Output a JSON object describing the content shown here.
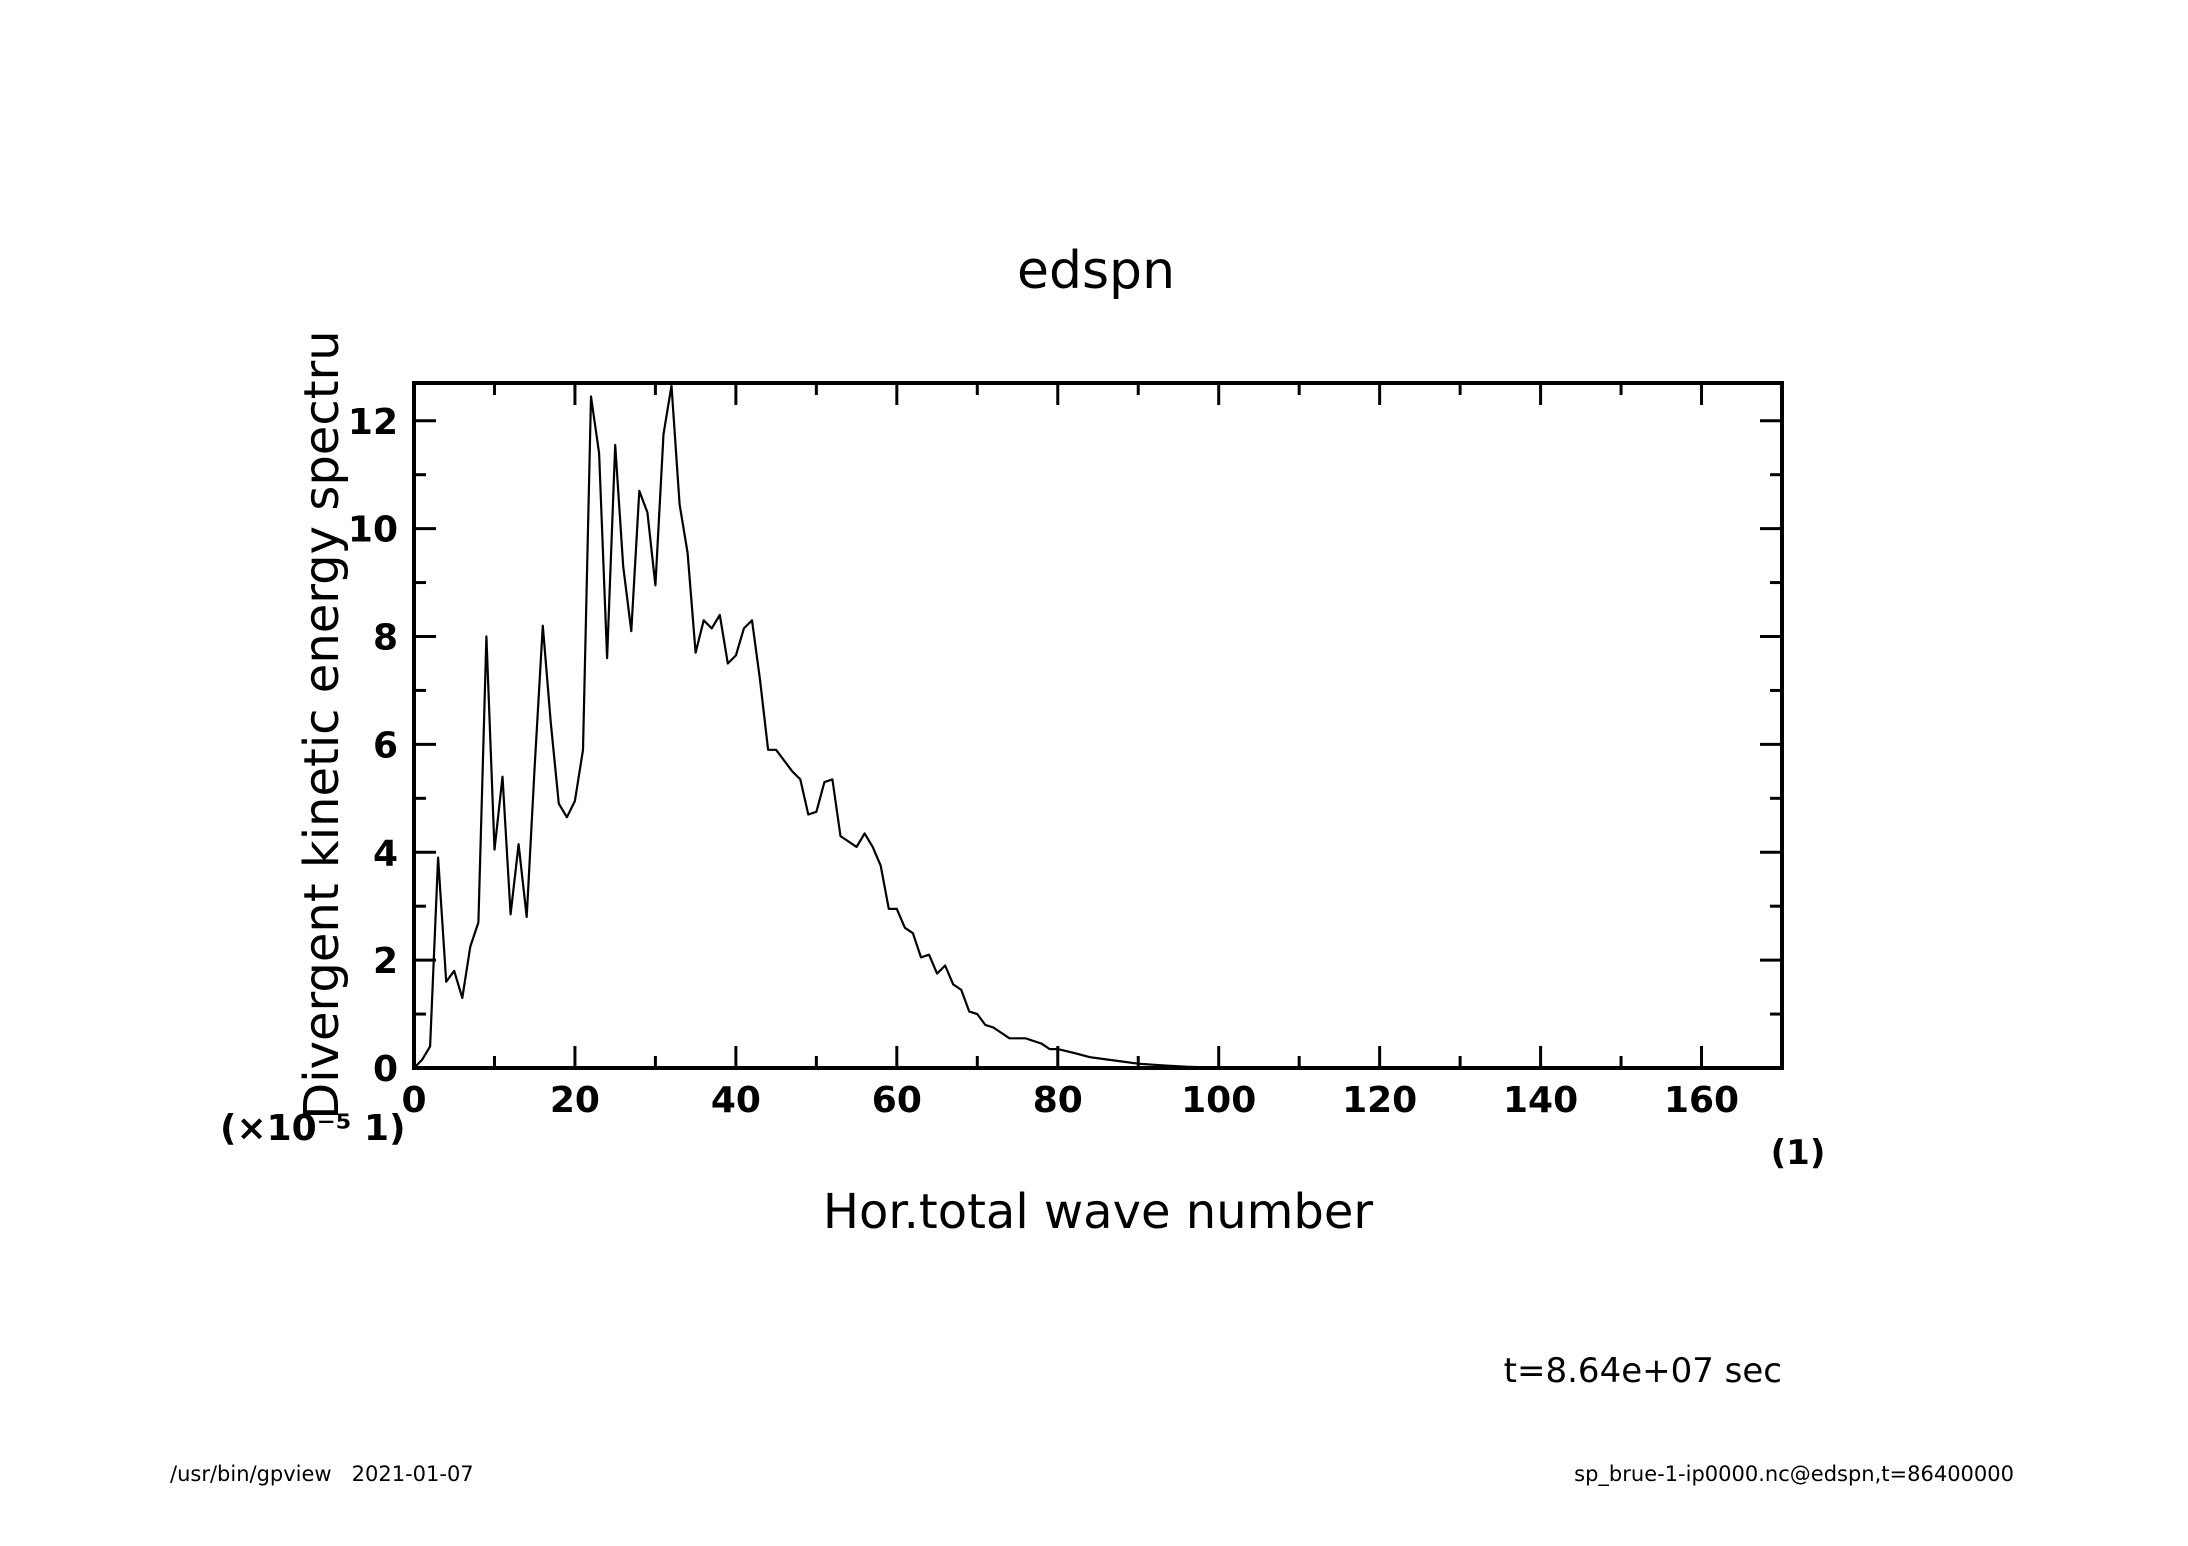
{
  "chart_data": {
    "type": "line",
    "title": "edspn",
    "xlabel": "Hor.total wave number",
    "ylabel": "Divergent kinetic energy spectru",
    "x_unit": "(1)",
    "y_unit": "(×10⁻⁵ 1)",
    "xlim": [
      0,
      170
    ],
    "ylim": [
      0,
      12.7
    ],
    "x_ticks": [
      "0",
      "20",
      "40",
      "60",
      "80",
      "100",
      "120",
      "140",
      "160"
    ],
    "y_ticks": [
      "0",
      "2",
      "4",
      "6",
      "8",
      "10",
      "12"
    ],
    "grid": false,
    "series": [
      {
        "x": [
          0,
          1,
          2,
          3,
          4,
          5,
          6,
          7,
          8,
          9,
          10,
          11,
          12,
          13,
          14,
          15,
          16,
          17,
          18,
          19,
          20,
          21,
          22,
          23,
          24,
          25,
          26,
          27,
          28,
          29,
          30,
          31,
          32,
          33,
          34,
          35,
          36,
          37,
          38,
          39,
          40,
          41,
          42,
          43,
          44,
          45,
          46,
          47,
          48,
          49,
          50,
          51,
          52,
          53,
          54,
          55,
          56,
          57,
          58,
          59,
          60,
          61,
          62,
          63,
          64,
          65,
          66,
          67,
          68,
          69,
          70,
          71,
          72,
          73,
          74,
          75,
          76,
          77,
          78,
          79,
          80,
          82,
          84,
          86,
          88,
          90,
          92,
          94,
          96,
          98,
          100,
          105,
          110,
          115,
          120,
          130,
          140,
          150,
          160,
          170
        ],
        "y": [
          0,
          0.15,
          0.4,
          3.9,
          1.6,
          1.8,
          1.3,
          2.25,
          2.7,
          8.0,
          4.05,
          5.4,
          2.85,
          4.15,
          2.8,
          5.6,
          8.2,
          6.4,
          4.9,
          4.65,
          4.95,
          5.9,
          12.45,
          11.4,
          7.6,
          11.55,
          9.3,
          8.1,
          10.7,
          10.3,
          8.95,
          11.75,
          12.65,
          10.45,
          9.55,
          7.7,
          8.3,
          8.15,
          8.4,
          7.5,
          7.65,
          8.15,
          8.3,
          7.2,
          5.9,
          5.9,
          5.7,
          5.5,
          5.35,
          4.7,
          4.75,
          5.3,
          5.35,
          4.3,
          4.2,
          4.1,
          4.35,
          4.1,
          3.75,
          2.95,
          2.95,
          2.6,
          2.5,
          2.05,
          2.1,
          1.75,
          1.9,
          1.55,
          1.45,
          1.05,
          1.0,
          0.8,
          0.75,
          0.65,
          0.55,
          0.55,
          0.55,
          0.5,
          0.45,
          0.35,
          0.35,
          0.28,
          0.2,
          0.16,
          0.12,
          0.08,
          0.06,
          0.04,
          0.025,
          0.015,
          0.01,
          0.005,
          0,
          0,
          0,
          0,
          0,
          0,
          0,
          0
        ]
      }
    ]
  },
  "footer": {
    "time": "t=8.64e+07 sec",
    "left": "/usr/bin/gpview   2021-01-07",
    "right": "sp_brue-1-ip0000.nc@edspn,t=86400000"
  },
  "colors": {
    "line": "#000000",
    "background": "#ffffff"
  }
}
